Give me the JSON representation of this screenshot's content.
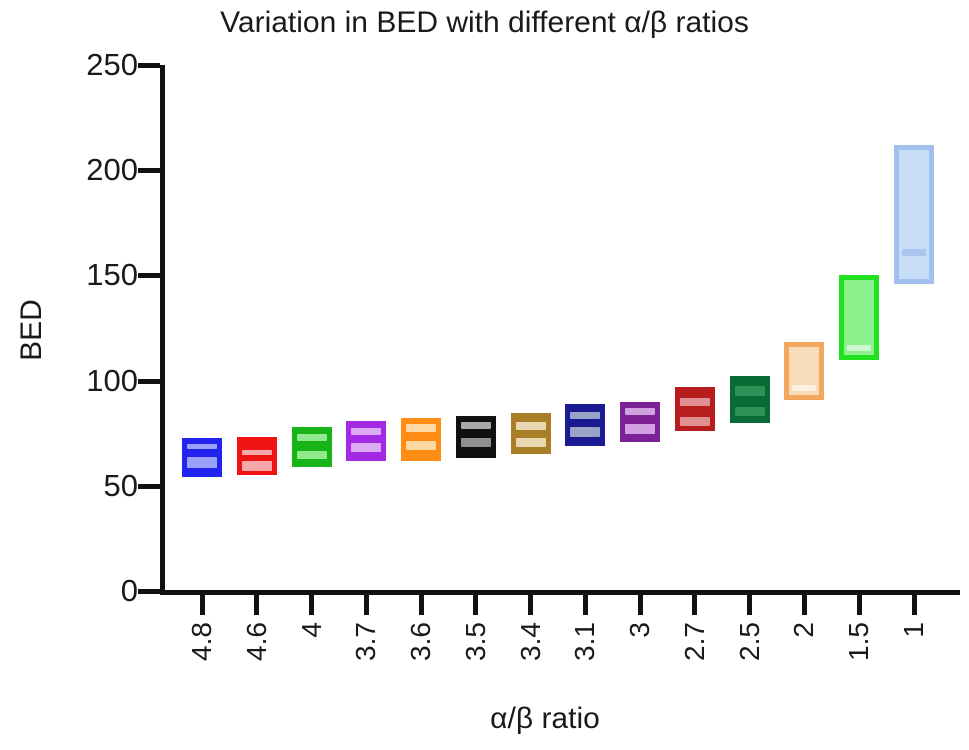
{
  "chart_data": {
    "type": "bar",
    "subtype": "floating-min-max-bars",
    "title": "Variation in BED with different α/β ratios",
    "xlabel": "α/β ratio",
    "ylabel": "BED",
    "ylim": [
      0,
      250
    ],
    "yticks": [
      0,
      50,
      100,
      150,
      200,
      250
    ],
    "grid": false,
    "legend": "none",
    "categories": [
      "4.8",
      "4.6",
      "4",
      "3.7",
      "3.6",
      "3.5",
      "3.4",
      "3.1",
      "3",
      "2.7",
      "2.5",
      "2",
      "1.5",
      "1"
    ],
    "bars": [
      {
        "label": "4.8",
        "min": 54,
        "max": 72.5,
        "edge": "#2323ef",
        "fill": "#2323ef",
        "frame": false,
        "marks": [
          {
            "value": 68.5,
            "size": 2.4,
            "color": "#99a1f8"
          },
          {
            "value": 61,
            "size": 5.2,
            "color": "#99a1f8"
          }
        ]
      },
      {
        "label": "4.6",
        "min": 55,
        "max": 73,
        "edge": "#ee1414",
        "fill": "#ee1414",
        "frame": false,
        "marks": [
          {
            "value": 66,
            "size": 2.4,
            "color": "#f8a8a8"
          },
          {
            "value": 59.5,
            "size": 4.8,
            "color": "#f8a8a8"
          }
        ]
      },
      {
        "label": "4",
        "min": 59,
        "max": 78,
        "edge": "#18b418",
        "fill": "#18b418",
        "frame": false,
        "marks": [
          {
            "value": 73,
            "size": 3.2,
            "color": "#8fe98f"
          },
          {
            "value": 64.5,
            "size": 3.8,
            "color": "#8fe98f"
          }
        ]
      },
      {
        "label": "3.7",
        "min": 62,
        "max": 81,
        "edge": "#a329e5",
        "fill": "#a329e5",
        "frame": false,
        "marks": [
          {
            "value": 76,
            "size": 3.4,
            "color": "#dcaaf5"
          },
          {
            "value": 68,
            "size": 4.3,
            "color": "#dcaaf5"
          }
        ]
      },
      {
        "label": "3.6",
        "min": 62,
        "max": 82,
        "edge": "#ff8c14",
        "fill": "#ff8c14",
        "frame": false,
        "marks": [
          {
            "value": 77.5,
            "size": 3.4,
            "color": "#fed9a4"
          },
          {
            "value": 69,
            "size": 4.3,
            "color": "#fed9a4"
          }
        ]
      },
      {
        "label": "3.5",
        "min": 63,
        "max": 83,
        "edge": "#101010",
        "fill": "#101010",
        "frame": false,
        "marks": [
          {
            "value": 78.5,
            "size": 3.4,
            "color": "#a8a8a8"
          },
          {
            "value": 70.5,
            "size": 4.3,
            "color": "#8f8f8f"
          }
        ]
      },
      {
        "label": "3.4",
        "min": 65,
        "max": 84.5,
        "edge": "#aa7d27",
        "fill": "#aa7d27",
        "frame": false,
        "marks": [
          {
            "value": 78.5,
            "size": 3.8,
            "color": "#e9d7b2"
          },
          {
            "value": 70.5,
            "size": 4.3,
            "color": "#e9d7b2"
          }
        ]
      },
      {
        "label": "3.1",
        "min": 69,
        "max": 89,
        "edge": "#1a1a93",
        "fill": "#1a1a93",
        "frame": false,
        "marks": [
          {
            "value": 83.5,
            "size": 3.4,
            "color": "#99a2c7"
          },
          {
            "value": 75.5,
            "size": 4.8,
            "color": "#99a2c7"
          }
        ]
      },
      {
        "label": "3",
        "min": 71,
        "max": 90,
        "edge": "#7d2196",
        "fill": "#7d2196",
        "frame": false,
        "marks": [
          {
            "value": 85.5,
            "size": 3.4,
            "color": "#d0a0e0"
          },
          {
            "value": 77,
            "size": 4.3,
            "color": "#d0a0e0"
          }
        ]
      },
      {
        "label": "2.7",
        "min": 76,
        "max": 97,
        "edge": "#b71d1d",
        "fill": "#b71d1d",
        "frame": false,
        "marks": [
          {
            "value": 90,
            "size": 3.8,
            "color": "#e09090"
          },
          {
            "value": 80.5,
            "size": 4.3,
            "color": "#e09090"
          }
        ]
      },
      {
        "label": "2.5",
        "min": 80,
        "max": 102,
        "edge": "#0a6a36",
        "fill": "#0a6a36",
        "frame": false,
        "marks": [
          {
            "value": 95,
            "size": 4.8,
            "color": "#2e9055"
          },
          {
            "value": 85.5,
            "size": 4.3,
            "color": "#2e9055"
          }
        ]
      },
      {
        "label": "2",
        "min": 91,
        "max": 118.5,
        "edge": "#f2a65e",
        "fill": "#f8dcba",
        "frame": true,
        "marks": [
          {
            "value": 96.5,
            "size": 3.2,
            "color": "#fdf1e1"
          }
        ]
      },
      {
        "label": "1.5",
        "min": 110,
        "max": 150,
        "edge": "#20e020",
        "fill": "#8df18d",
        "frame": true,
        "marks": [
          {
            "value": 115.5,
            "size": 3.2,
            "color": "#ccfacc"
          }
        ]
      },
      {
        "label": "1",
        "min": 146,
        "max": 212,
        "edge": "#a2c0ee",
        "fill": "#c8ddf8",
        "frame": true,
        "marks": [
          {
            "value": 161,
            "size": 3.2,
            "color": "#aac6f0"
          }
        ]
      }
    ]
  }
}
